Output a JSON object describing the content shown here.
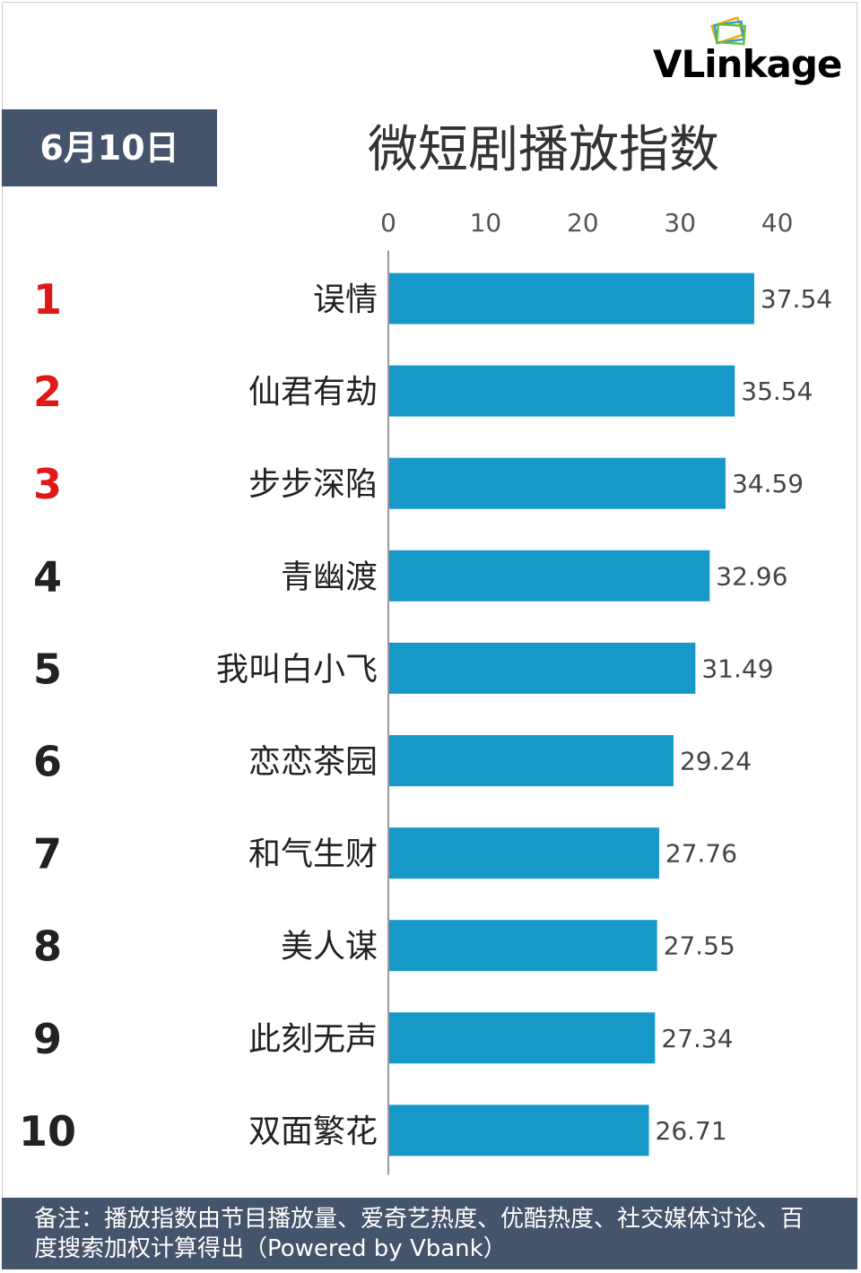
{
  "brand": {
    "logo_text": "VLinkage"
  },
  "header": {
    "date": "6月10日",
    "title": "微短剧播放指数"
  },
  "footer": {
    "note": "备注：播放指数由节目播放量、爱奇艺热度、优酷热度、社交媒体讨论、百度搜索加权计算得出（Powered by Vbank）"
  },
  "colors": {
    "bar": "#1699c9",
    "header_bg": "#44546a",
    "top_rank": "#e01818",
    "rank": "#222222",
    "axis": "#999999"
  },
  "chart_data": {
    "type": "bar",
    "orientation": "horizontal",
    "title": "微短剧播放指数",
    "categories": [
      "误情",
      "仙君有劫",
      "步步深陷",
      "青幽渡",
      "我叫白小飞",
      "恋恋茶园",
      "和气生财",
      "美人谋",
      "此刻无声",
      "双面繁花"
    ],
    "ranks": [
      "1",
      "2",
      "3",
      "4",
      "5",
      "6",
      "7",
      "8",
      "9",
      "10"
    ],
    "values": [
      37.54,
      35.54,
      34.59,
      32.96,
      31.49,
      29.24,
      27.76,
      27.55,
      27.34,
      26.71
    ],
    "value_labels": [
      "37.54",
      "35.54",
      "34.59",
      "32.96",
      "31.49",
      "29.24",
      "27.76",
      "27.55",
      "27.34",
      "26.71"
    ],
    "xticks": [
      "0",
      "10",
      "20",
      "30",
      "40"
    ],
    "xlim": [
      0,
      40
    ],
    "axis_position": "top",
    "grid": false,
    "highlight_top": 3
  }
}
